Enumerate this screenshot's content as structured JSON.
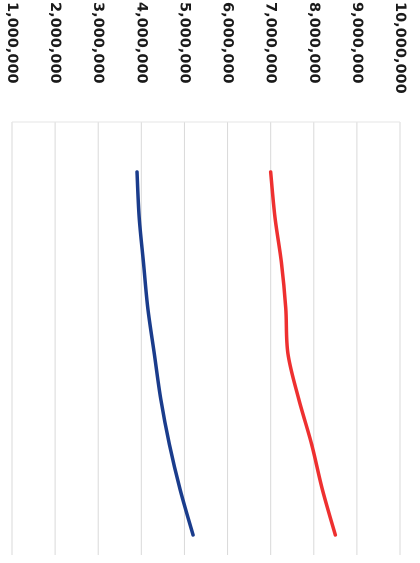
{
  "chart_data": {
    "type": "line",
    "orientation": "rotated-90-clockwise",
    "title": "",
    "xlabel": "",
    "ylabel": "",
    "ylim": [
      1000000,
      10000000
    ],
    "grid": true,
    "y_ticks": [
      {
        "value": 1000000,
        "label": "1,000,000"
      },
      {
        "value": 2000000,
        "label": "2,000,000"
      },
      {
        "value": 3000000,
        "label": "3,000,000"
      },
      {
        "value": 4000000,
        "label": "4,000,000"
      },
      {
        "value": 5000000,
        "label": "5,000,000"
      },
      {
        "value": 6000000,
        "label": "6,000,000"
      },
      {
        "value": 7000000,
        "label": "7,000,000"
      },
      {
        "value": 8000000,
        "label": "8,000,000"
      },
      {
        "value": 9000000,
        "label": "9,000,000"
      },
      {
        "value": 10000000,
        "label": "10,000,000"
      }
    ],
    "x": [
      0,
      1,
      2,
      3,
      4,
      5,
      6,
      7,
      8
    ],
    "series": [
      {
        "color": "#ee3030",
        "values": [
          7000000,
          7100000,
          7250000,
          7350000,
          7400000,
          7650000,
          7950000,
          8200000,
          8500000
        ]
      },
      {
        "color": "#1a3c8c",
        "values": [
          3900000,
          3950000,
          4050000,
          4150000,
          4300000,
          4450000,
          4650000,
          4900000,
          5200000
        ]
      }
    ]
  }
}
